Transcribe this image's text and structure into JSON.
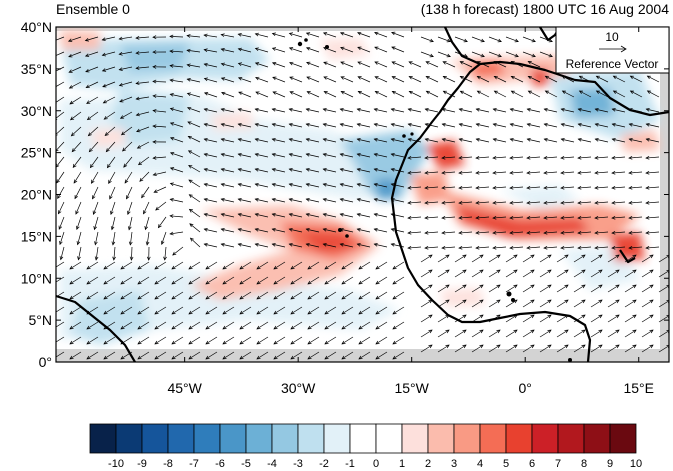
{
  "title_left": "Ensemble 0",
  "title_right": "(138 h forecast) 1800 UTC 16 Aug 2004",
  "map": {
    "lat_labels": [
      "40°N",
      "35°N",
      "30°N",
      "25°N",
      "20°N",
      "15°N",
      "10°N",
      "5°N",
      "0°"
    ],
    "lat_values": [
      40,
      35,
      30,
      25,
      20,
      15,
      10,
      5,
      0
    ],
    "lon_labels": [
      "45°W",
      "30°W",
      "15°W",
      "0°",
      "15°E"
    ],
    "lon_values": [
      -45,
      -30,
      -15,
      0,
      15
    ],
    "lon_range": [
      -62,
      19
    ],
    "lat_range": [
      0,
      40
    ]
  },
  "reference_vector": {
    "value": "10",
    "label": "Reference Vector"
  },
  "colorbar": {
    "labels": [
      "-10",
      "-9",
      "-8",
      "-7",
      "-6",
      "-5",
      "-4",
      "-3",
      "-2",
      "-1",
      "0",
      "1",
      "2",
      "3",
      "4",
      "5",
      "6",
      "7",
      "8",
      "9",
      "10"
    ],
    "colors": [
      "#08224a",
      "#0b3a74",
      "#15559b",
      "#2168ad",
      "#2f7dbb",
      "#4a96c8",
      "#6cb0d6",
      "#94c8e2",
      "#bfe0ef",
      "#e2f1f8",
      "#ffffff",
      "#ffffff",
      "#fde0dc",
      "#fbbcad",
      "#f99a84",
      "#f46d55",
      "#e8412f",
      "#cc2027",
      "#b2181e",
      "#8e0f16",
      "#6a0910"
    ]
  }
}
